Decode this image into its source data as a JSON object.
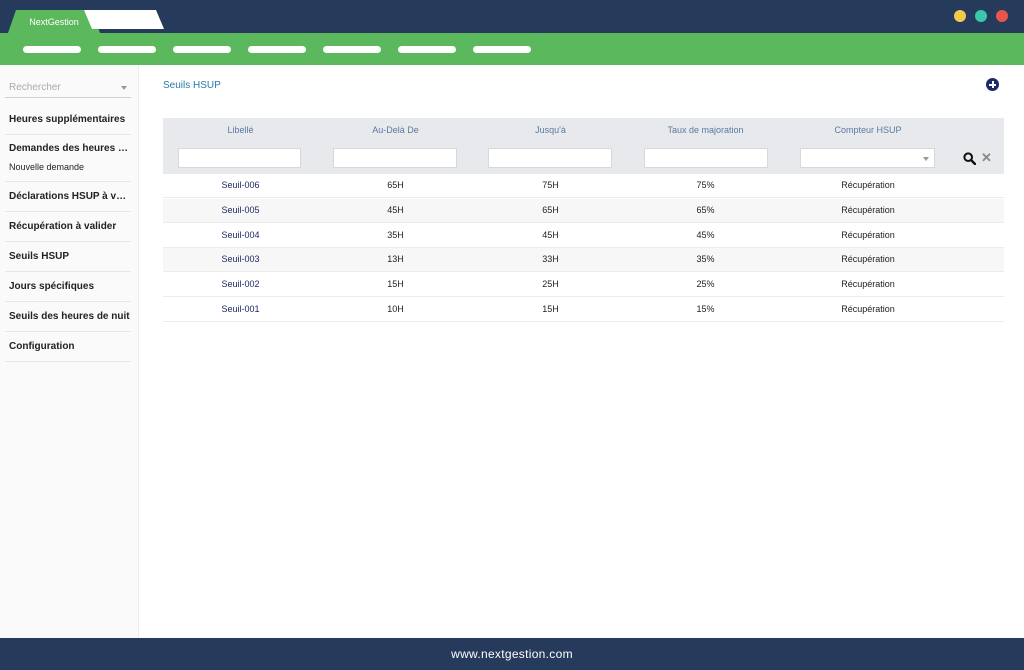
{
  "app": {
    "tab_title": "NextGestion",
    "window_dots": [
      "#f2c94c",
      "#3cc8a8",
      "#e8574b"
    ]
  },
  "sidebar": {
    "search_placeholder": "Rechercher",
    "items": [
      {
        "label": "Heures supplémentaires"
      },
      {
        "label": "Demandes des heures supplémentaires",
        "sub": "Nouvelle demande"
      },
      {
        "label": "Déclarations HSUP à valider"
      },
      {
        "label": "Récupération à valider"
      },
      {
        "label": "Seuils HSUP"
      },
      {
        "label": "Jours spécifiques"
      },
      {
        "label": "Seuils des heures de nuit"
      },
      {
        "label": "Configuration"
      }
    ]
  },
  "main": {
    "breadcrumb": "Seuils HSUP",
    "columns": [
      "Libellé",
      "Au-Delà De",
      "Jusqu'à",
      "Taux de majoration",
      "Compteur HSUP"
    ],
    "rows": [
      [
        "Seuil-006",
        "65H",
        "75H",
        "75%",
        "Récupération"
      ],
      [
        "Seuil-005",
        "45H",
        "65H",
        "65%",
        "Récupération"
      ],
      [
        "Seuil-004",
        "35H",
        "45H",
        "45%",
        "Récupération"
      ],
      [
        "Seuil-003",
        "13H",
        "33H",
        "35%",
        "Récupération"
      ],
      [
        "Seuil-002",
        "15H",
        "25H",
        "25%",
        "Récupération"
      ],
      [
        "Seuil-001",
        "10H",
        "15H",
        "15%",
        "Récupération"
      ]
    ]
  },
  "footer": {
    "text": "www.nextgestion.com"
  }
}
